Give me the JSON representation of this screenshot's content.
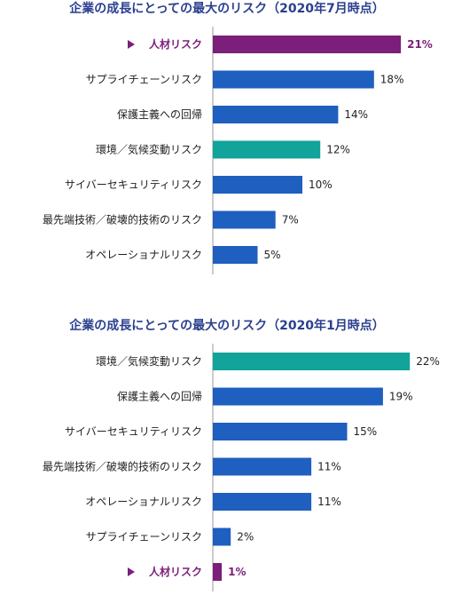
{
  "chart_data": [
    {
      "type": "bar",
      "orientation": "horizontal",
      "title": "企業の成長にとっての最大のリスク（2020年7月時点）",
      "categories": [
        "人材リスク",
        "サプライチェーンリスク",
        "保護主義への回帰",
        "環境／気候変動リスク",
        "サイバーセキュリティリスク",
        "最先端技術／破壊的技術のリスク",
        "オペレーショナルリスク"
      ],
      "values": [
        21,
        18,
        14,
        12,
        10,
        7,
        5
      ],
      "value_labels": [
        "21%",
        "18%",
        "14%",
        "12%",
        "10%",
        "7%",
        "5%"
      ],
      "highlight_category": "人材リスク",
      "bar_colors": [
        "#7b1f7a",
        "#1f5fbf",
        "#1f5fbf",
        "#12a39a",
        "#1f5fbf",
        "#1f5fbf",
        "#1f5fbf"
      ],
      "grid": false,
      "legend": "none"
    },
    {
      "type": "bar",
      "orientation": "horizontal",
      "title": "企業の成長にとっての最大のリスク（2020年1月時点）",
      "categories": [
        "環境／気候変動リスク",
        "保護主義への回帰",
        "サイバーセキュリティリスク",
        "最先端技術／破壊的技術のリスク",
        "オペレーショナルリスク",
        "サプライチェーンリスク",
        "人材リスク"
      ],
      "values": [
        22,
        19,
        15,
        11,
        11,
        2,
        1
      ],
      "value_labels": [
        "22%",
        "19%",
        "15%",
        "11%",
        "11%",
        "2%",
        "1%"
      ],
      "highlight_category": "人材リスク",
      "bar_colors": [
        "#12a39a",
        "#1f5fbf",
        "#1f5fbf",
        "#1f5fbf",
        "#1f5fbf",
        "#1f5fbf",
        "#7b1f7a"
      ],
      "grid": false,
      "legend": "none"
    }
  ],
  "colors": {
    "title": "#2a3f8f",
    "highlight": "#7b1f7a",
    "default_bar": "#1f5fbf",
    "environment_bar": "#12a39a",
    "axis": "#999999"
  },
  "highlight_marker_icon": "triangle-right-icon"
}
